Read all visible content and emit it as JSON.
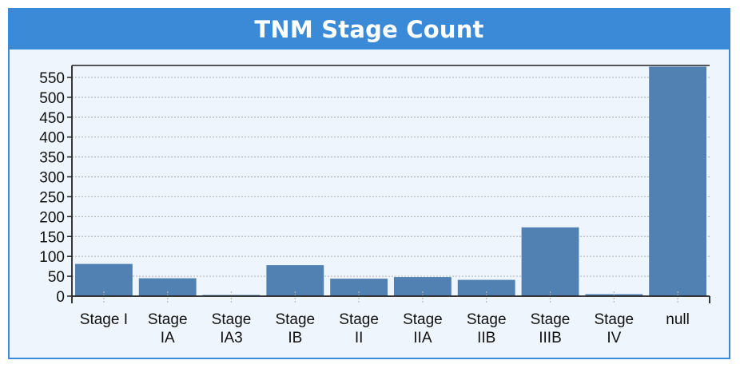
{
  "panel": {
    "title": "TNM Stage Count"
  },
  "colors": {
    "header": "#3a8ad8",
    "bar": "#5180b2",
    "background": "#eef5fc",
    "grid": "#b8b8b8"
  },
  "chart_data": {
    "type": "bar",
    "title": "TNM Stage Count",
    "categories": [
      [
        "Stage I"
      ],
      [
        "Stage",
        "IA"
      ],
      [
        "Stage",
        "IA3"
      ],
      [
        "Stage",
        "IB"
      ],
      [
        "Stage",
        "II"
      ],
      [
        "Stage",
        "IIA"
      ],
      [
        "Stage",
        "IIB"
      ],
      [
        "Stage",
        "IIIB"
      ],
      [
        "Stage",
        "IV"
      ],
      [
        "null"
      ]
    ],
    "values": [
      81,
      45,
      3,
      78,
      44,
      48,
      41,
      173,
      5,
      577
    ],
    "yticks": [
      0,
      50,
      100,
      150,
      200,
      250,
      300,
      350,
      400,
      450,
      500,
      550
    ],
    "ylim": [
      0,
      580
    ],
    "grid": true,
    "xlabel": "",
    "ylabel": ""
  }
}
